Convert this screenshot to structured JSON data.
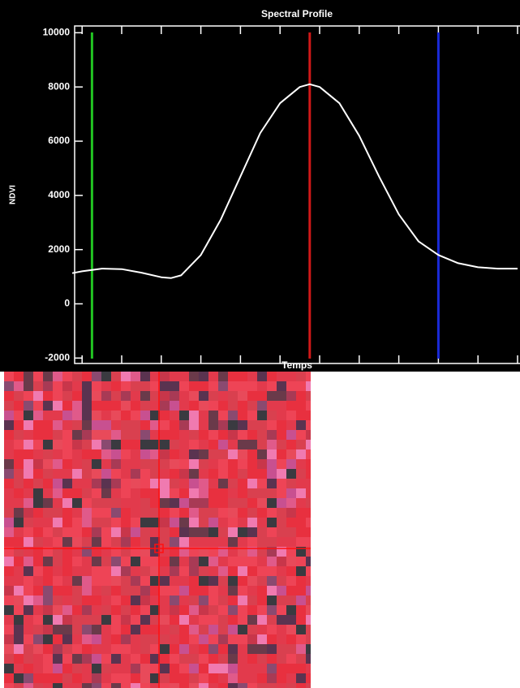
{
  "chart_data": {
    "type": "line",
    "title": "Spectral Profile",
    "x_label": "Temps",
    "y_label": "NDVI",
    "x": [
      1,
      2,
      4,
      6,
      8,
      10,
      11,
      12,
      14,
      16,
      18,
      20,
      22,
      24,
      25,
      26,
      28,
      30,
      32,
      34,
      36,
      38,
      40,
      42,
      44,
      46
    ],
    "series": [
      {
        "color": "#ffffff",
        "values": [
          1130,
          1200,
          1300,
          1280,
          1150,
          980,
          950,
          1050,
          1800,
          3100,
          4700,
          6300,
          7400,
          8000,
          8100,
          8000,
          7400,
          6200,
          4700,
          3300,
          2300,
          1800,
          1500,
          1350,
          1300,
          1300
        ]
      }
    ],
    "markers": [
      {
        "x": 3,
        "color": "#22c322"
      },
      {
        "x": 25,
        "color": "#d01818"
      },
      {
        "x": 38,
        "color": "#1a2ad8"
      }
    ],
    "xlim": [
      1,
      46
    ],
    "ylim": [
      -2200,
      10250
    ],
    "xticks": [
      2,
      6,
      10,
      14,
      18,
      22,
      26,
      30,
      34,
      38,
      42,
      46
    ],
    "yticks": [
      -2000,
      0,
      2000,
      4000,
      6000,
      8000,
      10000
    ]
  }
}
